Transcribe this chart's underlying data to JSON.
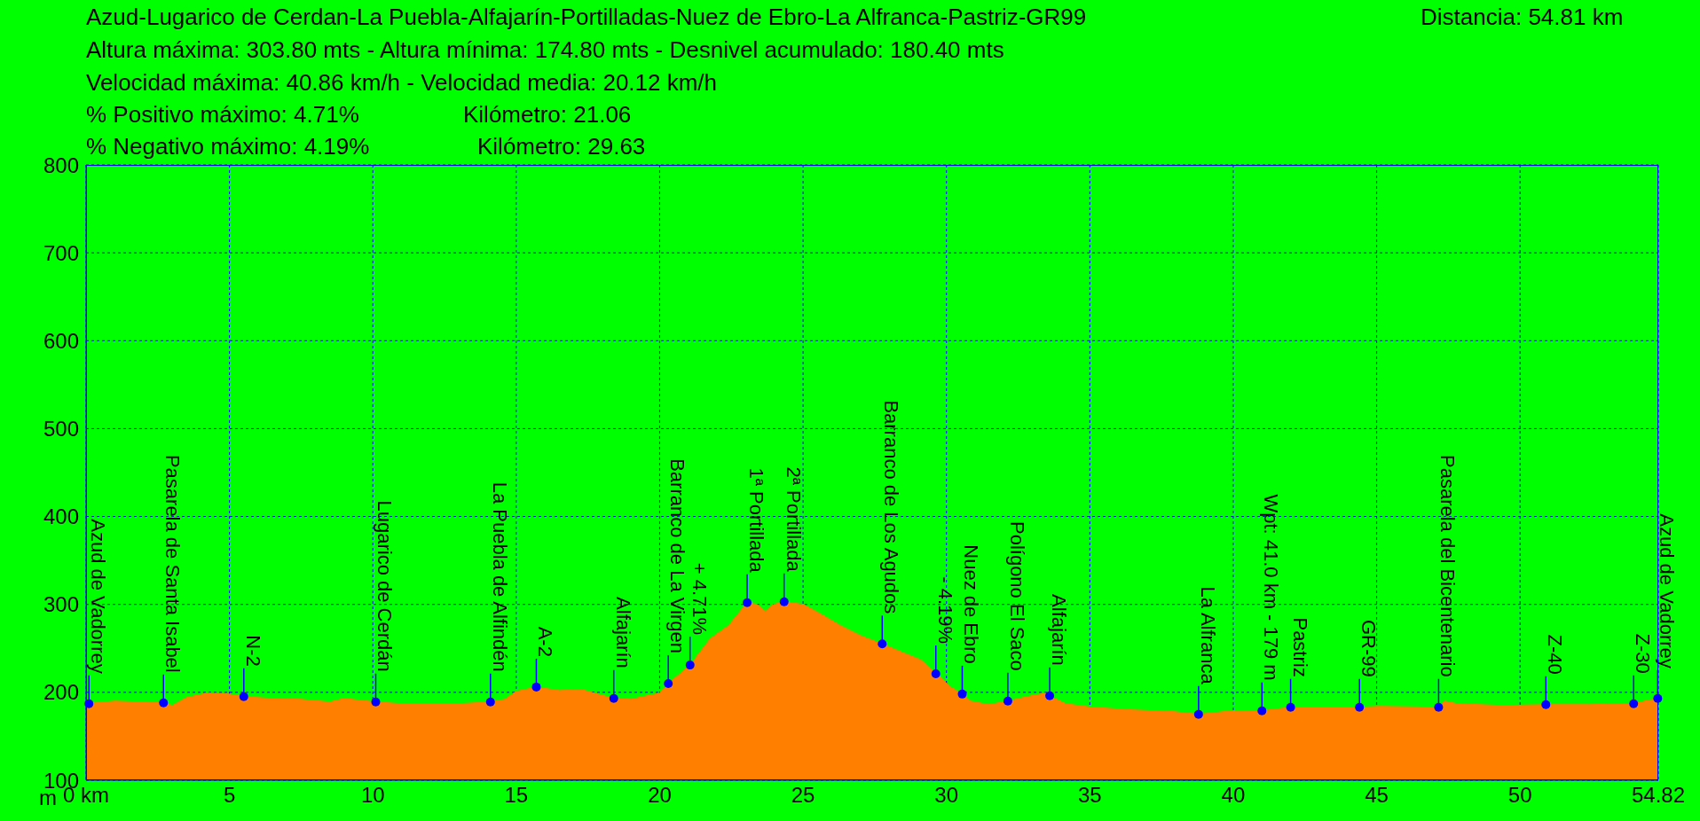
{
  "chart_data": {
    "type": "area",
    "title": "Azud-Lugarico de Cerdan-La Puebla-Alfajarín-Portilladas-Nuez de Ebro-La Alfranca-Pastriz-GR99",
    "annotations": [
      "Distancia: 54.81 km",
      "Altura máxima: 303.80 mts - Altura mínima: 174.80 mts - Desnivel acumulado: 180.40 mts",
      "Velocidad máxima: 40.86 km/h - Velocidad media: 20.12 km/h",
      "% Positivo máximo: 4.71%",
      "Kilómetro: 21.06",
      "% Negativo máximo: 4.19%",
      "Kilómetro: 29.63",
      {
        "text": "Azud de Vadorrey",
        "x": 0.1,
        "y": 187
      },
      {
        "text": "Pasarela de Santa Isabel",
        "x": 2.7,
        "y": 188
      },
      {
        "text": "N-2",
        "x": 5.5,
        "y": 195
      },
      {
        "text": "Lugarico de Cerdán",
        "x": 10.1,
        "y": 189
      },
      {
        "text": "La Puebla de Alfindén",
        "x": 14.1,
        "y": 189
      },
      {
        "text": "A-2",
        "x": 15.7,
        "y": 206
      },
      {
        "text": "Alfajarín",
        "x": 18.4,
        "y": 193
      },
      {
        "text": "Barranco de La Virgen",
        "x": 20.3,
        "y": 210
      },
      {
        "text": "+ 4.71%",
        "x": 21.06,
        "y": 231
      },
      {
        "text": "1ª Portillada",
        "x": 23.05,
        "y": 302
      },
      {
        "text": "2ª Portillada",
        "x": 24.34,
        "y": 303
      },
      {
        "text": "Barranco de Los Agudos",
        "x": 27.76,
        "y": 255
      },
      {
        "text": "- 4.19%",
        "x": 29.63,
        "y": 221
      },
      {
        "text": "Nuez de Ebro",
        "x": 30.55,
        "y": 198
      },
      {
        "text": "Polígono El Saco",
        "x": 32.14,
        "y": 190
      },
      {
        "text": "Alfajarín",
        "x": 33.6,
        "y": 196
      },
      {
        "text": "La Alfranca",
        "x": 38.79,
        "y": 175
      },
      {
        "text": "Wpt: 41.0 km - 179 m",
        "x": 41.0,
        "y": 179
      },
      {
        "text": "Pastriz",
        "x": 42.0,
        "y": 183
      },
      {
        "text": "GR-99",
        "x": 44.4,
        "y": 183
      },
      {
        "text": "Pasarela del Bicentenario",
        "x": 47.16,
        "y": 183
      },
      {
        "text": "Z-40",
        "x": 50.9,
        "y": 186
      },
      {
        "text": "Z-30",
        "x": 53.96,
        "y": 187
      },
      {
        "text": "Azud de Vadorrey",
        "x": 54.8,
        "y": 193
      }
    ],
    "ylabel": "m",
    "x": [
      0,
      1,
      2.7,
      3.0,
      3.5,
      4.2,
      5,
      5.5,
      6.5,
      7.5,
      8.5,
      9,
      10.1,
      11,
      13,
      14.1,
      14.6,
      15,
      15.7,
      16.5,
      17.3,
      18.4,
      19,
      19.4,
      20,
      20.3,
      21.06,
      21.76,
      22.4,
      22.9,
      23.05,
      23.4,
      23.66,
      23.97,
      24.34,
      25,
      25.57,
      26.3,
      27.04,
      27.76,
      28.5,
      29.1,
      29.66,
      30.1,
      30.55,
      30.85,
      31.46,
      32.14,
      32.8,
      33.43,
      33.6,
      34.16,
      35.06,
      36.5,
      37.94,
      38.79,
      39.66,
      41.02,
      42.0,
      43.3,
      44.4,
      45.1,
      47.16,
      47.37,
      47.8,
      49.37,
      50.9,
      52.4,
      53.96,
      54.47,
      54.82
    ],
    "series": [
      {
        "color": "#ff8000",
        "values": [
          187,
          190,
          188,
          185,
          194,
          199,
          198,
          195,
          193,
          192,
          189,
          193,
          189,
          187,
          187,
          189,
          192,
          201,
          206,
          202,
          203,
          193,
          192,
          195,
          199,
          210,
          231,
          261,
          276,
          296,
          302,
          300,
          292,
          300,
          303,
          300,
          290,
          276,
          264,
          255,
          245,
          237,
          221,
          207,
          198,
          190,
          186,
          190,
          195,
          199,
          196,
          187,
          183,
          180,
          178,
          175,
          178,
          179,
          183,
          183,
          183,
          184,
          183,
          190,
          187,
          185,
          186,
          186,
          187,
          191,
          193
        ]
      }
    ],
    "xlim": [
      0,
      54.82
    ],
    "xticks": [
      {
        "value": 0,
        "label": "0 km"
      },
      5,
      10,
      15,
      20,
      25,
      30,
      35,
      40,
      45,
      50,
      54.82
    ],
    "ylim": [
      100,
      800
    ],
    "yticks": [
      100,
      200,
      300,
      400,
      500,
      600,
      700,
      800
    ],
    "grid": true
  }
}
